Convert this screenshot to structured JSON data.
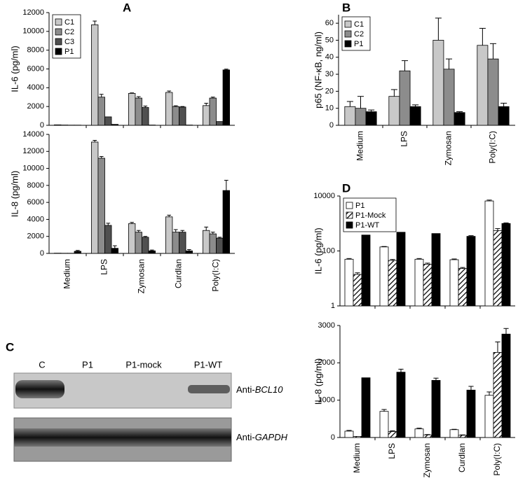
{
  "chart_data": [
    {
      "type": "bar",
      "panel_label": "A",
      "y_label": "IL-6 (pg/ml)",
      "ylim": [
        0,
        12000
      ],
      "yticks": [
        0,
        2000,
        4000,
        6000,
        8000,
        10000,
        12000
      ],
      "legend": "upper left",
      "series": [
        {
          "name": "C1",
          "color": "#c8c8c8",
          "values": [
            50,
            10700,
            3400,
            3500,
            2100
          ],
          "errors": [
            null,
            400,
            50,
            150,
            250
          ]
        },
        {
          "name": "C2",
          "color": "#8c8c8c",
          "values": [
            30,
            3000,
            2900,
            2000,
            2900
          ],
          "errors": [
            null,
            300,
            150,
            80,
            100
          ]
        },
        {
          "name": "C3",
          "color": "#505050",
          "values": [
            20,
            900,
            1900,
            1950,
            400
          ],
          "errors": [
            null,
            null,
            150,
            50,
            null
          ]
        },
        {
          "name": "P1",
          "color": "#000000",
          "values": [
            20,
            100,
            30,
            30,
            5900
          ],
          "errors": [
            null,
            null,
            null,
            null,
            80
          ]
        }
      ]
    },
    {
      "type": "bar",
      "y_label": "IL-8 (pg/ml)",
      "ylim": [
        0,
        14000
      ],
      "yticks": [
        0,
        2000,
        4000,
        6000,
        8000,
        10000,
        12000,
        14000
      ],
      "categories": [
        "Medium",
        "LPS",
        "Zymosan",
        "Curdlan",
        "Poly(I:C)"
      ],
      "series": [
        {
          "color": "#c8c8c8",
          "values": [
            30,
            13100,
            3500,
            4300,
            2700
          ],
          "errors": [
            null,
            200,
            150,
            200,
            400
          ]
        },
        {
          "color": "#8c8c8c",
          "values": [
            20,
            11200,
            2500,
            2500,
            2300
          ],
          "errors": [
            null,
            200,
            200,
            300,
            200
          ]
        },
        {
          "color": "#505050",
          "values": [
            20,
            3300,
            1900,
            2500,
            1800
          ],
          "errors": [
            null,
            250,
            100,
            200,
            100
          ]
        },
        {
          "color": "#000000",
          "values": [
            250,
            600,
            300,
            300,
            7400
          ],
          "errors": [
            100,
            300,
            100,
            150,
            1200
          ]
        }
      ]
    },
    {
      "type": "bar",
      "panel_label": "B",
      "y_label": "p65 (NF-κB, ng/ml)",
      "ylim": [
        0,
        65
      ],
      "yticks": [
        0,
        10,
        20,
        30,
        40,
        50,
        60
      ],
      "legend": "upper left",
      "categories": [
        "Medium",
        "LPS",
        "Zymosan",
        "Poly(I:C)"
      ],
      "series": [
        {
          "name": "C1",
          "color": "#c8c8c8",
          "values": [
            11,
            17,
            50,
            47
          ],
          "errors": [
            3,
            4,
            13,
            10
          ]
        },
        {
          "name": "C2",
          "color": "#8c8c8c",
          "values": [
            10,
            32,
            33,
            39
          ],
          "errors": [
            7,
            6,
            6,
            9
          ]
        },
        {
          "name": "P1",
          "color": "#000000",
          "values": [
            8,
            11,
            7.5,
            11
          ],
          "errors": [
            1,
            1,
            0.5,
            2
          ]
        }
      ]
    },
    {
      "type": "bar",
      "panel_label": "D",
      "y_label": "IL-6 (pg/ml)",
      "log_scale": true,
      "ylim": [
        1,
        10000
      ],
      "yticks": [
        1,
        100,
        10000
      ],
      "legend": "upper left",
      "series": [
        {
          "name": "P1",
          "color": "#ffffff",
          "values": [
            50,
            140,
            50,
            48,
            6600
          ],
          "errors": [
            3,
            5,
            3,
            3,
            500
          ]
        },
        {
          "name": "P1-Mock",
          "color": "#ffffff",
          "hatch": true,
          "values": [
            14,
            45,
            33,
            23,
            550
          ],
          "errors": [
            2,
            4,
            3,
            2,
            100
          ]
        },
        {
          "name": "P1-WT",
          "color": "#000000",
          "values": [
            380,
            480,
            430,
            340,
            1000
          ],
          "errors": [
            null,
            null,
            null,
            20,
            50
          ]
        }
      ]
    },
    {
      "type": "bar",
      "y_label": "IL-8 (pg/ml)",
      "ylim": [
        0,
        3000
      ],
      "yticks": [
        0,
        1000,
        2000,
        3000
      ],
      "categories": [
        "Medium",
        "LPS",
        "Zymosan",
        "Curdlan",
        "Poly(I:C)"
      ],
      "series": [
        {
          "color": "#ffffff",
          "values": [
            170,
            700,
            230,
            210,
            1130
          ],
          "errors": [
            20,
            50,
            20,
            10,
            90
          ]
        },
        {
          "color": "#ffffff",
          "hatch": true,
          "values": [
            30,
            160,
            70,
            60,
            2280
          ],
          "errors": [
            null,
            20,
            10,
            10,
            280
          ]
        },
        {
          "color": "#000000",
          "values": [
            1600,
            1750,
            1530,
            1270,
            2770
          ],
          "errors": [
            null,
            80,
            60,
            100,
            150
          ]
        }
      ]
    }
  ],
  "blot": {
    "panel_label": "C",
    "lanes": [
      "C",
      "P1",
      "P1-mock",
      "P1-WT"
    ],
    "rows": [
      {
        "prefix": "Anti-",
        "gene": "BCL10"
      },
      {
        "prefix": "Anti-",
        "gene": "GAPDH"
      }
    ]
  }
}
